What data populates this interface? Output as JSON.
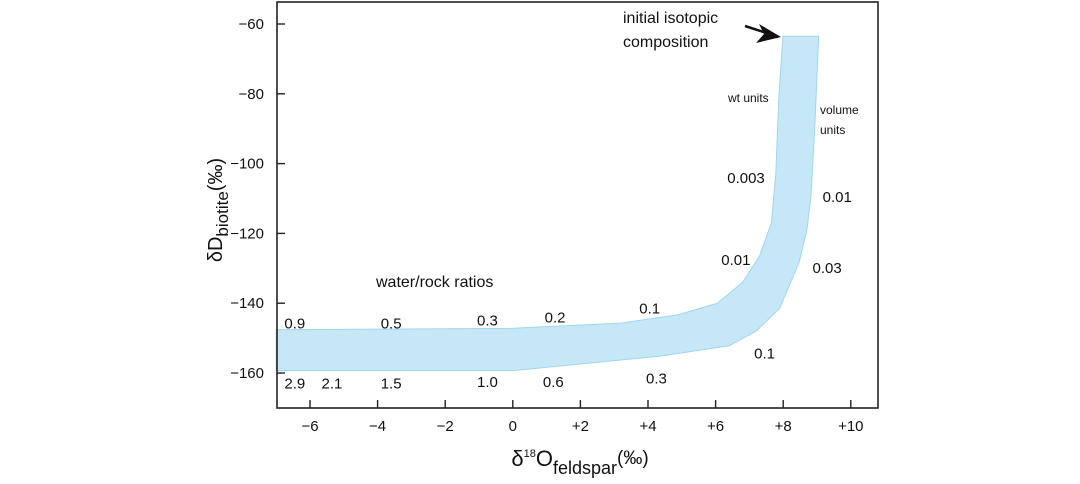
{
  "chart_data": {
    "type": "area",
    "title": "",
    "xlabel": {
      "main": "δ",
      "sup": "18",
      "base": "O",
      "sub": "feldspar",
      "unit": "(‰)"
    },
    "ylabel": {
      "main": "δD",
      "sub": "biotite",
      "unit": "(‰)"
    },
    "xlim": [
      -7,
      10.8
    ],
    "ylim": [
      -170,
      -53.7
    ],
    "xticks": [
      -6,
      -4,
      -2,
      0,
      2,
      4,
      6,
      8,
      10
    ],
    "xtick_labels": [
      "−6",
      "−4",
      "−2",
      "0",
      "+2",
      "+4",
      "+6",
      "+8",
      "+10"
    ],
    "yticks": [
      -60,
      -80,
      -100,
      -120,
      -140,
      -160
    ],
    "ytick_labels": [
      "−60",
      "−80",
      "−100",
      "−120",
      "−140",
      "−160"
    ],
    "grid": false,
    "band_color": "#c5e7f6",
    "band_edge_color": "#9fd6ef",
    "band_upper_edge": [
      [
        -7,
        -147.6
      ],
      [
        0,
        -147.2
      ],
      [
        3.2,
        -145.7
      ],
      [
        4.9,
        -143.3
      ],
      [
        6.05,
        -140
      ],
      [
        6.8,
        -134
      ],
      [
        7.3,
        -126.5
      ],
      [
        7.65,
        -117
      ],
      [
        7.78,
        -103
      ],
      [
        7.87,
        -81.3
      ],
      [
        7.99,
        -63.5
      ]
    ],
    "band_lower_edge": [
      [
        9.05,
        -63.5
      ],
      [
        8.93,
        -90.7
      ],
      [
        8.82,
        -109.5
      ],
      [
        8.7,
        -119
      ],
      [
        8.47,
        -128.3
      ],
      [
        7.9,
        -141.4
      ],
      [
        7.2,
        -148
      ],
      [
        6.4,
        -152.2
      ],
      [
        4.33,
        -155.2
      ],
      [
        0,
        -159.3
      ],
      [
        -7,
        -159.3
      ]
    ],
    "annotations": [
      {
        "text": "0.9",
        "x": -6.45,
        "y": -147.2
      },
      {
        "text": "0.5",
        "x": -3.6,
        "y": -147.2
      },
      {
        "text": "0.3",
        "x": -0.75,
        "y": -146.4
      },
      {
        "text": "0.2",
        "x": 1.25,
        "y": -145.6
      },
      {
        "text": "0.1",
        "x": 4.05,
        "y": -143
      },
      {
        "text": "0.01",
        "x": 6.6,
        "y": -129
      },
      {
        "text": "0.003",
        "x": 6.9,
        "y": -105.5
      },
      {
        "text": "2.9",
        "x": -6.45,
        "y": -164.4
      },
      {
        "text": "2.1",
        "x": -5.35,
        "y": -164.4
      },
      {
        "text": "1.5",
        "x": -3.6,
        "y": -164.4
      },
      {
        "text": "1.0",
        "x": -0.75,
        "y": -164
      },
      {
        "text": "0.6",
        "x": 1.2,
        "y": -164
      },
      {
        "text": "0.3",
        "x": 4.25,
        "y": -163
      },
      {
        "text": "0.1",
        "x": 7.45,
        "y": -155.8
      },
      {
        "text": "0.03",
        "x": 9.3,
        "y": -131.4
      },
      {
        "text": "0.01",
        "x": 9.6,
        "y": -111
      }
    ],
    "labels": {
      "water_rock": "water/rock ratios",
      "wt_units": "wt units",
      "volume_units_1": "volume",
      "volume_units_2": "units",
      "initial_1": "initial isotopic",
      "initial_2": "composition"
    }
  }
}
